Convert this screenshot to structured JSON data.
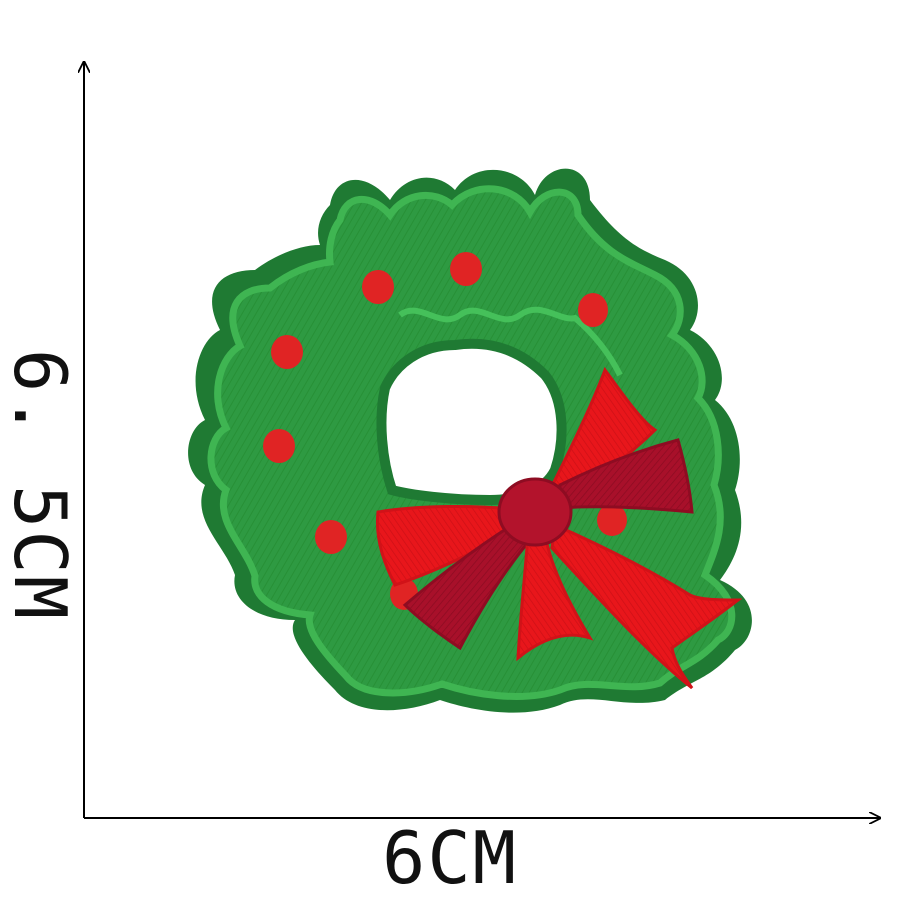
{
  "dimensions": {
    "width_label": "6CM",
    "height_label": "6. 5CM"
  },
  "product": {
    "kind": "embroidered Christmas wreath patch",
    "colors": {
      "border": "#1f7a33",
      "leaf": "#2e9a42",
      "leaf_stitch": "#3fb552",
      "berry": "#e02424",
      "bow_light": "#e8161b",
      "bow_dark": "#a8102a",
      "bow_knot": "#b3132c"
    }
  },
  "axes": {
    "color": "#000000"
  }
}
